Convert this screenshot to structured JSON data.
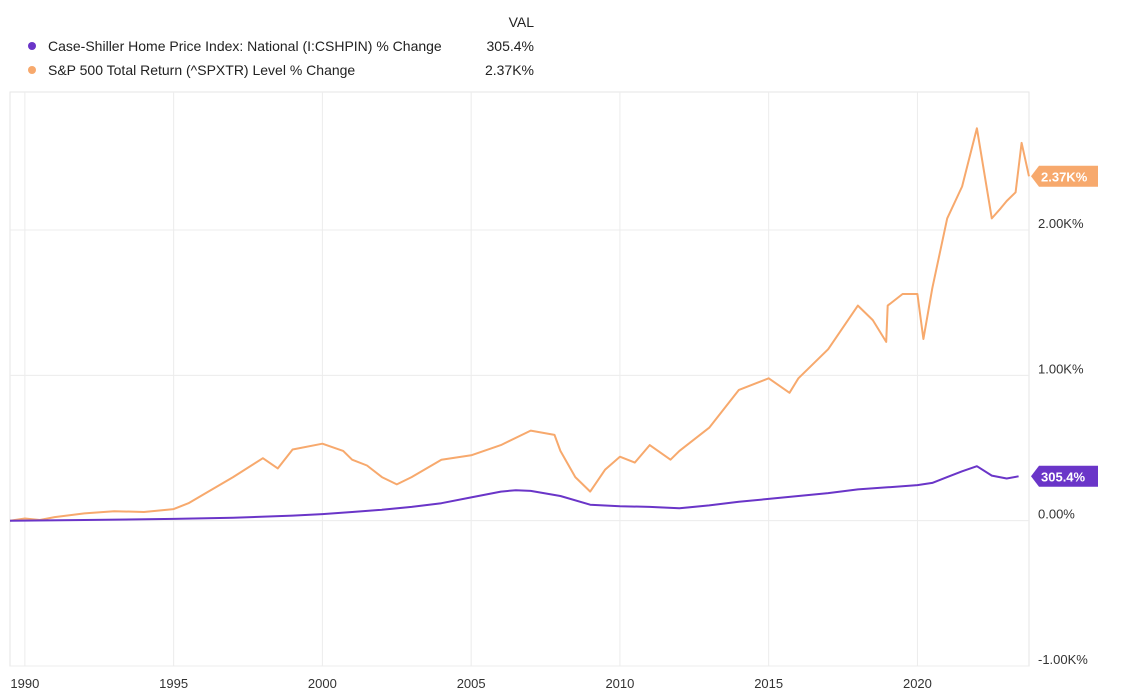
{
  "legend": {
    "header": "VAL",
    "items": [
      {
        "name": "Case-Shiller Home Price Index: National (I:CSHPIN) % Change",
        "value": "305.4%",
        "color": "#6a35c8"
      },
      {
        "name": "S&P 500 Total Return (^SPXTR) Level % Change",
        "value": "2.37K%",
        "color": "#f7a96d"
      }
    ]
  },
  "chart_data": {
    "type": "line",
    "title": "",
    "xlabel": "",
    "ylabel": "",
    "xlim": [
      1989.5,
      2023.75
    ],
    "ylim": [
      -1000,
      2950
    ],
    "x_ticks": [
      1990,
      1995,
      2000,
      2005,
      2010,
      2015,
      2020
    ],
    "x_tick_labels": [
      "1990",
      "1995",
      "2000",
      "2005",
      "2010",
      "2015",
      "2020"
    ],
    "y_ticks": [
      -1000,
      0,
      1000,
      2000
    ],
    "y_tick_labels": [
      "-1.00K%",
      "0.00%",
      "1.00K%",
      "2.00K%"
    ],
    "grid": true,
    "series": [
      {
        "name": "Case-Shiller Home Price Index: National (I:CSHPIN) % Change",
        "color": "#6a35c8",
        "end_label": "305.4%",
        "end_value": 305.4,
        "x": [
          1989.5,
          1992,
          1995,
          1997,
          1999,
          2000,
          2001,
          2002,
          2003,
          2004,
          2005,
          2006,
          2006.5,
          2007,
          2008,
          2009,
          2010,
          2011,
          2012,
          2013,
          2014,
          2015,
          2016,
          2017,
          2018,
          2019,
          2020,
          2020.5,
          2021,
          2021.5,
          2022,
          2022.5,
          2023,
          2023.4
        ],
        "y": [
          0,
          5,
          12,
          20,
          35,
          45,
          60,
          75,
          95,
          120,
          160,
          200,
          210,
          205,
          170,
          110,
          100,
          95,
          85,
          105,
          130,
          150,
          170,
          190,
          215,
          230,
          245,
          260,
          300,
          340,
          375,
          310,
          290,
          305.4
        ]
      },
      {
        "name": "S&P 500 Total Return (^SPXTR) Level % Change",
        "color": "#f7a96d",
        "end_label": "2.37K%",
        "end_value": 2370,
        "x": [
          1989.5,
          1990,
          1990.5,
          1991,
          1992,
          1993,
          1994,
          1995,
          1995.5,
          1996,
          1997,
          1998,
          1998.5,
          1999,
          2000,
          2000.7,
          2001,
          2001.5,
          2002,
          2002.5,
          2003,
          2004,
          2005,
          2006,
          2007,
          2007.8,
          2008,
          2008.5,
          2009,
          2009.2,
          2009.5,
          2010,
          2010.5,
          2011,
          2011.7,
          2012,
          2013,
          2014,
          2015,
          2015.7,
          2016,
          2017,
          2018,
          2018.5,
          2018.95,
          2019,
          2019.5,
          2020,
          2020.2,
          2020.5,
          2021,
          2021.5,
          2022,
          2022.5,
          2022.8,
          2023,
          2023.3,
          2023.5,
          2023.75
        ],
        "y": [
          0,
          15,
          5,
          25,
          50,
          65,
          60,
          80,
          120,
          180,
          300,
          430,
          360,
          490,
          530,
          480,
          420,
          380,
          300,
          250,
          300,
          420,
          450,
          520,
          620,
          590,
          480,
          300,
          200,
          260,
          350,
          440,
          400,
          520,
          420,
          480,
          640,
          900,
          980,
          880,
          980,
          1180,
          1480,
          1380,
          1230,
          1480,
          1560,
          1560,
          1250,
          1600,
          2080,
          2300,
          2700,
          2080,
          2150,
          2200,
          2260,
          2600,
          2370
        ]
      }
    ]
  }
}
